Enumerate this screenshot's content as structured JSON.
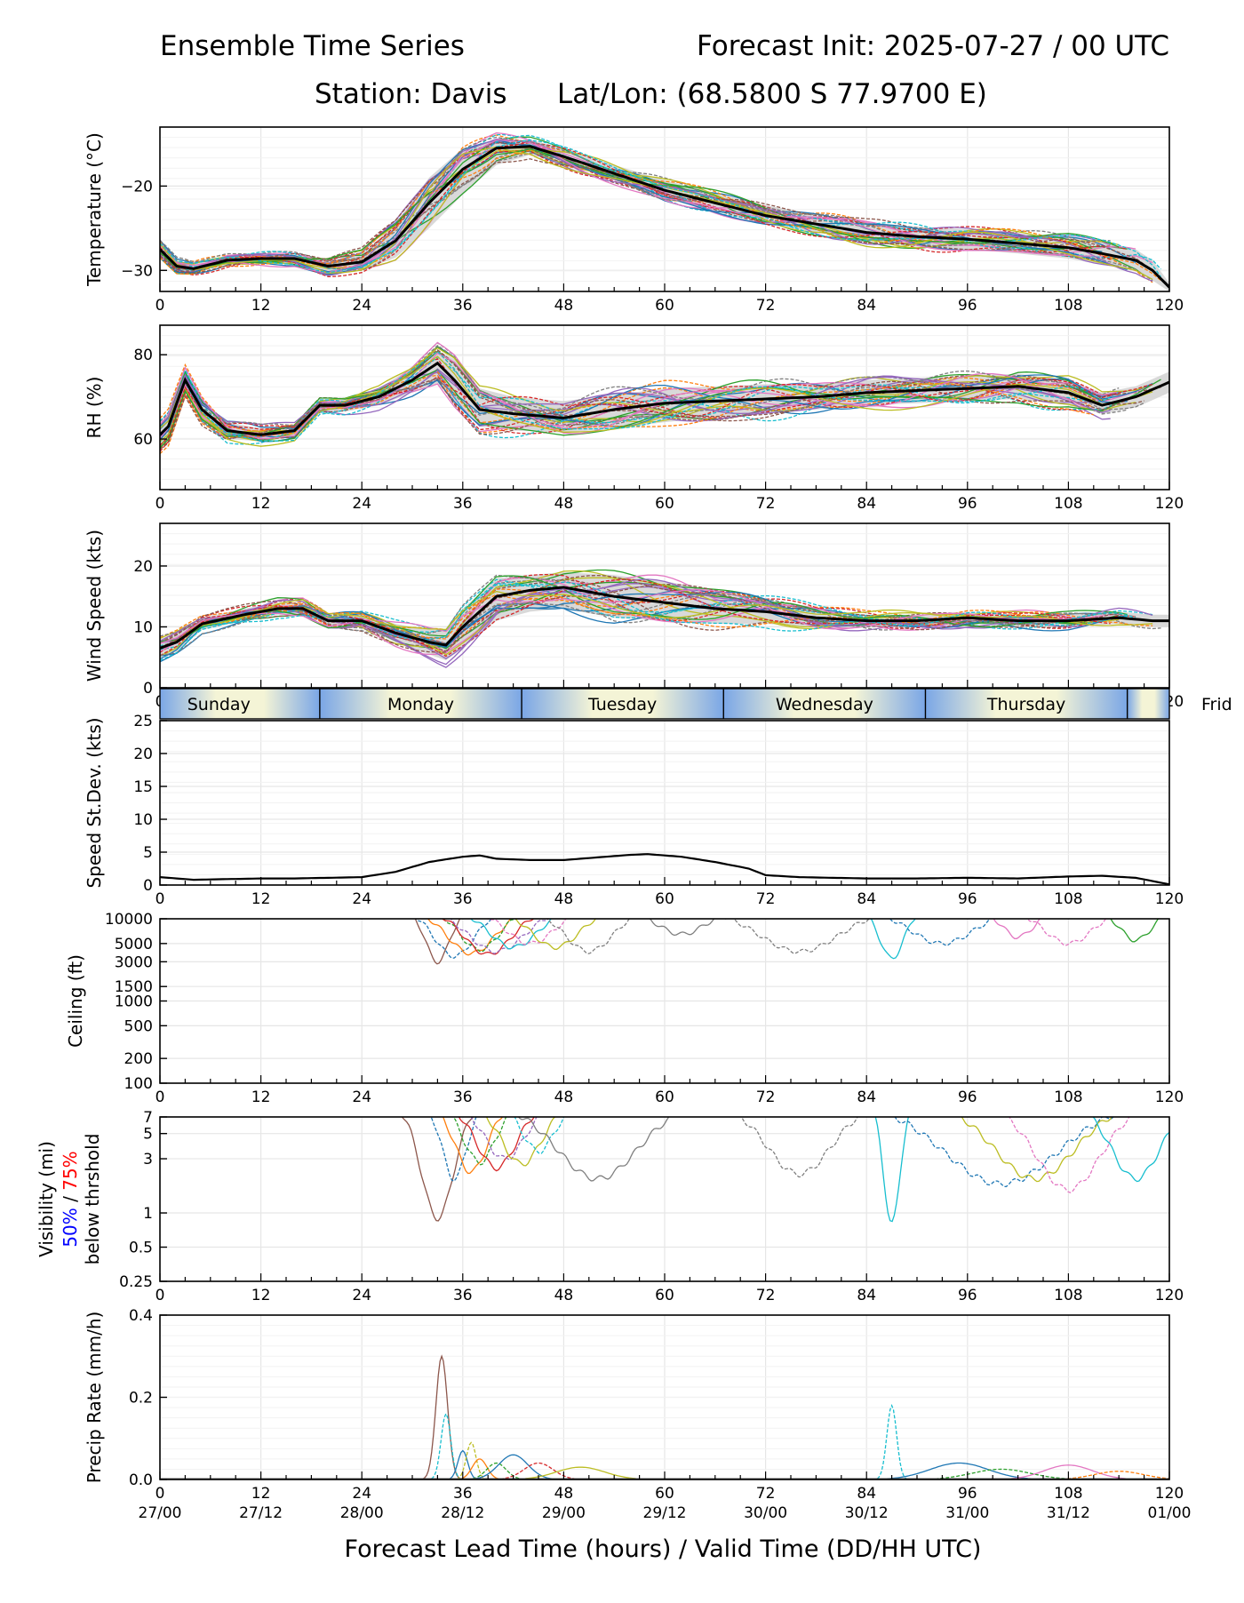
{
  "header": {
    "title_left": "Ensemble Time Series",
    "title_right": "Forecast Init: 2025-07-27 / 00 UTC",
    "station": "Station: Davis",
    "latlon": "Lat/Lon: (68.5800 S 77.9700 E)"
  },
  "xaxis": {
    "label": "Forecast Lead Time (hours) / Valid Time (DD/HH UTC)",
    "ticks": [
      0,
      12,
      24,
      36,
      48,
      60,
      72,
      84,
      96,
      108,
      120
    ],
    "valid_ticks": [
      "27/00",
      "27/12",
      "28/00",
      "28/12",
      "29/00",
      "29/12",
      "30/00",
      "30/12",
      "31/00",
      "31/12",
      "01/00"
    ]
  },
  "days": {
    "labels": [
      "Sunday",
      "Monday",
      "Tuesday",
      "Wednesday",
      "Thursday",
      "Frid"
    ],
    "boundaries_h": [
      19,
      43,
      67,
      91,
      115
    ]
  },
  "visibility_label": {
    "line1": "Visibility (mi)",
    "p50": "50%",
    "sep": " / ",
    "p75": "75%",
    "line3": "below thrshold"
  },
  "colors": {
    "members": [
      "#1f77b4",
      "#ff7f0e",
      "#2ca02c",
      "#d62728",
      "#9467bd",
      "#8c564b",
      "#e377c2",
      "#7f7f7f",
      "#bcbd22",
      "#17becf"
    ],
    "mean": "#000000",
    "spread": "#d0d0d0",
    "day_light": "#f4f4d6",
    "day_dark": "#7aa6e6",
    "vis50": "#0000ff",
    "vis75": "#ff0000"
  },
  "chart_data": [
    {
      "id": "temperature",
      "type": "line",
      "ylabel": "Temperature (°C)",
      "ylim": [
        -32.5,
        -13
      ],
      "yticks": [
        -20,
        -30
      ],
      "mean": {
        "x": [
          0,
          2,
          4,
          8,
          12,
          16,
          20,
          24,
          28,
          32,
          36,
          40,
          44,
          48,
          54,
          60,
          66,
          72,
          78,
          84,
          90,
          96,
          102,
          108,
          112,
          116,
          118,
          120
        ],
        "y": [
          -27.5,
          -29.5,
          -29.8,
          -28.8,
          -28.6,
          -28.6,
          -29.5,
          -29,
          -26.5,
          -22,
          -18,
          -15.5,
          -15.3,
          -16.5,
          -18.5,
          -20.5,
          -22,
          -23.5,
          -24.5,
          -25.5,
          -26,
          -26.3,
          -26.8,
          -27.3,
          -28,
          -28.8,
          -30,
          -32
        ]
      },
      "spread_low": [
        -28.5,
        -30.2,
        -30.3,
        -29.3,
        -29.1,
        -29.1,
        -30.3,
        -30,
        -28.5,
        -25,
        -21,
        -17.5,
        -16.3,
        -17.3,
        -19.3,
        -21.5,
        -23,
        -24.5,
        -25.5,
        -26.5,
        -27.2,
        -27.5,
        -28,
        -28.6,
        -29.3,
        -30.1,
        -31.2,
        -32.5
      ],
      "spread_high": [
        -26.5,
        -28.8,
        -29.3,
        -28.3,
        -28.1,
        -28.1,
        -28.7,
        -28,
        -24.5,
        -19,
        -15.5,
        -14.5,
        -14.5,
        -15.5,
        -17.5,
        -19.3,
        -20.8,
        -22.3,
        -23.3,
        -24.3,
        -24.8,
        -25.1,
        -25.6,
        -26,
        -26.7,
        -27.5,
        -28.8,
        -31.5
      ],
      "member_amp": 1.6,
      "members": 30
    },
    {
      "id": "rh",
      "type": "line",
      "ylabel": "RH (%)",
      "ylim": [
        48,
        87
      ],
      "yticks": [
        80,
        60
      ],
      "mean": {
        "x": [
          0,
          1,
          3,
          5,
          8,
          12,
          16,
          19,
          22,
          26,
          30,
          33,
          35,
          38,
          42,
          48,
          54,
          60,
          66,
          72,
          78,
          84,
          90,
          96,
          102,
          108,
          112,
          116,
          120
        ],
        "y": [
          61,
          63,
          74,
          67,
          62,
          61,
          62,
          68,
          68,
          70,
          74,
          78,
          74,
          67,
          66,
          65,
          67,
          68.5,
          69,
          69.5,
          70,
          71,
          71.5,
          72,
          72.5,
          71,
          68,
          70,
          73.5
        ]
      },
      "spread_low": [
        57,
        60,
        71,
        64.5,
        60,
        59.5,
        60.5,
        66.5,
        66.5,
        68,
        71,
        73,
        69,
        63,
        62,
        61.5,
        62.5,
        64,
        65,
        66,
        67,
        68,
        68.5,
        69,
        69.5,
        68,
        66,
        67.5,
        71
      ],
      "spread_high": [
        63,
        66,
        76,
        69.5,
        64,
        62.5,
        63.5,
        69.5,
        69.5,
        72,
        77,
        81,
        79,
        72,
        70,
        69,
        70.5,
        72,
        72.5,
        73,
        73,
        74,
        74.5,
        75,
        75.5,
        74,
        71,
        72.5,
        76
      ],
      "member_amp": 3.5,
      "members": 30
    },
    {
      "id": "wind",
      "type": "line",
      "ylabel": "Wind Speed (kts)",
      "ylim": [
        0,
        27
      ],
      "yticks": [
        20,
        10,
        0
      ],
      "mean": {
        "x": [
          0,
          2,
          5,
          10,
          14,
          17,
          20,
          24,
          28,
          32,
          34,
          36,
          40,
          44,
          48,
          54,
          60,
          66,
          72,
          78,
          84,
          90,
          96,
          102,
          108,
          114,
          118,
          120
        ],
        "y": [
          6.5,
          7.5,
          10.5,
          12,
          13,
          13,
          11,
          11,
          9,
          7.5,
          7,
          10,
          15,
          16,
          16.5,
          15,
          14,
          13,
          12.5,
          11.5,
          11,
          11,
          11.5,
          11,
          11,
          11.5,
          11,
          11
        ]
      },
      "spread_low": [
        5,
        6,
        9.5,
        11,
        12,
        12,
        10.3,
        10,
        7.5,
        5.5,
        4.5,
        6.5,
        11,
        12.5,
        13,
        11.5,
        11,
        10.5,
        10.5,
        10,
        10,
        10,
        10.5,
        10,
        10,
        10.5,
        10,
        10
      ],
      "spread_high": [
        8,
        9,
        11.5,
        13,
        14,
        14,
        11.8,
        12,
        10.5,
        9.5,
        9.5,
        13,
        18,
        18.5,
        19,
        18.5,
        17.5,
        16,
        14.5,
        13,
        12,
        12,
        12.5,
        12,
        12,
        12.5,
        12,
        12
      ],
      "member_amp": 2.5,
      "members": 30
    },
    {
      "id": "speed_sd",
      "type": "line",
      "ylabel": "Speed St.Dev. (kts)",
      "ylim": [
        0,
        25
      ],
      "yticks": [
        25,
        20,
        15,
        10,
        5,
        0
      ],
      "mean": {
        "x": [
          0,
          4,
          8,
          12,
          16,
          20,
          24,
          28,
          32,
          36,
          38,
          40,
          44,
          48,
          52,
          56,
          58,
          62,
          66,
          70,
          72,
          76,
          84,
          90,
          96,
          102,
          108,
          112,
          116,
          118,
          120
        ],
        "y": [
          1.2,
          0.8,
          0.9,
          1,
          1,
          1.1,
          1.2,
          2,
          3.5,
          4.3,
          4.5,
          4,
          3.8,
          3.8,
          4.2,
          4.6,
          4.7,
          4.3,
          3.5,
          2.5,
          1.5,
          1.2,
          1,
          1,
          1.1,
          1,
          1.3,
          1.4,
          1.1,
          0.6,
          0.1
        ]
      }
    },
    {
      "id": "ceiling",
      "type": "line",
      "ylabel": "Ceiling (ft)",
      "scale": "log",
      "ylim": [
        100,
        10000
      ],
      "yticks": [
        10000,
        5000,
        3000,
        1500,
        1000,
        500,
        200,
        100
      ],
      "dips": [
        {
          "center": 33,
          "width": 3,
          "min": 3000,
          "color": 5
        },
        {
          "center": 35,
          "width": 5,
          "min": 3500,
          "color": 0
        },
        {
          "center": 37,
          "width": 6,
          "min": 3800,
          "color": 1
        },
        {
          "center": 38,
          "width": 5,
          "min": 4200,
          "color": 2
        },
        {
          "center": 39,
          "width": 6,
          "min": 3700,
          "color": 3
        },
        {
          "center": 40,
          "width": 7,
          "min": 4000,
          "color": 4
        },
        {
          "center": 42,
          "width": 6,
          "min": 4500,
          "color": 9
        },
        {
          "center": 44,
          "width": 6,
          "min": 5000,
          "color": 6
        },
        {
          "center": 47,
          "width": 6,
          "min": 4500,
          "color": 8
        },
        {
          "center": 51,
          "width": 6,
          "min": 4000,
          "color": 7
        },
        {
          "center": 62,
          "width": 6,
          "min": 6500,
          "color": 7
        },
        {
          "center": 76,
          "width": 10,
          "min": 4000,
          "color": 7
        },
        {
          "center": 87,
          "width": 3,
          "min": 3300,
          "color": 9
        },
        {
          "center": 93,
          "width": 8,
          "min": 5000,
          "color": 0
        },
        {
          "center": 102,
          "width": 4,
          "min": 6000,
          "color": 6
        },
        {
          "center": 108,
          "width": 6,
          "min": 5000,
          "color": 6
        },
        {
          "center": 116,
          "width": 4,
          "min": 5500,
          "color": 2
        }
      ]
    },
    {
      "id": "visibility",
      "type": "line",
      "scale": "log",
      "ylim": [
        0.25,
        7
      ],
      "yticks": [
        7,
        5,
        3,
        1,
        0.5,
        0.25
      ],
      "dips": [
        {
          "center": 33,
          "width": 4,
          "min": 0.9,
          "color": 5
        },
        {
          "center": 35,
          "width": 3,
          "min": 2,
          "color": 0
        },
        {
          "center": 37,
          "width": 4,
          "min": 2.3,
          "color": 1
        },
        {
          "center": 38,
          "width": 4,
          "min": 2.8,
          "color": 2
        },
        {
          "center": 40,
          "width": 5,
          "min": 2.5,
          "color": 3
        },
        {
          "center": 41,
          "width": 5,
          "min": 3,
          "color": 4
        },
        {
          "center": 43,
          "width": 5,
          "min": 2.7,
          "color": 8
        },
        {
          "center": 45,
          "width": 4,
          "min": 3.5,
          "color": 9
        },
        {
          "center": 52,
          "width": 10,
          "min": 2,
          "color": 7
        },
        {
          "center": 76,
          "width": 8,
          "min": 2.2,
          "color": 7
        },
        {
          "center": 87,
          "width": 2,
          "min": 0.8,
          "color": 9
        },
        {
          "center": 100,
          "width": 14,
          "min": 1.8,
          "color": 0
        },
        {
          "center": 104,
          "width": 10,
          "min": 2,
          "color": 8
        },
        {
          "center": 108,
          "width": 8,
          "min": 1.6,
          "color": 6
        },
        {
          "center": 116,
          "width": 6,
          "min": 2,
          "color": 9
        }
      ]
    },
    {
      "id": "precip",
      "type": "line",
      "ylabel": "Precip Rate (mm/h)",
      "ylim": [
        0,
        0.4
      ],
      "yticks": [
        0.4,
        0.2,
        0.0
      ],
      "peaks": [
        {
          "center": 33.5,
          "width": 1.2,
          "max": 0.3,
          "color": 5
        },
        {
          "center": 34,
          "width": 1,
          "max": 0.16,
          "color": 9
        },
        {
          "center": 36,
          "width": 1,
          "max": 0.07,
          "color": 0
        },
        {
          "center": 37,
          "width": 1,
          "max": 0.09,
          "color": 8
        },
        {
          "center": 38,
          "width": 1.5,
          "max": 0.05,
          "color": 1
        },
        {
          "center": 40,
          "width": 2,
          "max": 0.04,
          "color": 2
        },
        {
          "center": 42,
          "width": 3,
          "max": 0.06,
          "color": 0
        },
        {
          "center": 45,
          "width": 3,
          "max": 0.04,
          "color": 3
        },
        {
          "center": 50,
          "width": 5,
          "max": 0.03,
          "color": 8
        },
        {
          "center": 87,
          "width": 1,
          "max": 0.18,
          "color": 9
        },
        {
          "center": 95,
          "width": 6,
          "max": 0.04,
          "color": 0
        },
        {
          "center": 100,
          "width": 6,
          "max": 0.025,
          "color": 2
        },
        {
          "center": 108,
          "width": 5,
          "max": 0.035,
          "color": 6
        },
        {
          "center": 114,
          "width": 5,
          "max": 0.02,
          "color": 1
        }
      ]
    }
  ]
}
